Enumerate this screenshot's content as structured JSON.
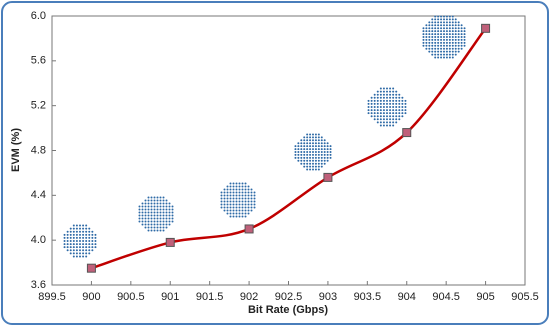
{
  "chart_data": {
    "type": "line",
    "x_label": "Bit Rate (Gbps)",
    "y_label": "EVM (%)",
    "x": [
      900,
      901,
      902,
      903,
      904,
      905
    ],
    "series": [
      {
        "color": "#c00000",
        "marker_color": "#c0607a",
        "values": [
          3.75,
          3.98,
          4.1,
          4.56,
          4.96,
          5.89
        ]
      }
    ],
    "xlim": [
      899.5,
      905.5
    ],
    "xticks": [
      899.5,
      900,
      900.5,
      901,
      901.5,
      902,
      902.5,
      903,
      903.5,
      904,
      904.5,
      905,
      905.5
    ],
    "ylim": [
      3.6,
      6.0
    ],
    "yticks": [
      3.6,
      {
        "value": 4,
        "label": "4.0"
      },
      4.4,
      4.8,
      5.2,
      5.6,
      {
        "value": 6,
        "label": "6.0"
      }
    ],
    "grid": false,
    "smooth": true
  }
}
